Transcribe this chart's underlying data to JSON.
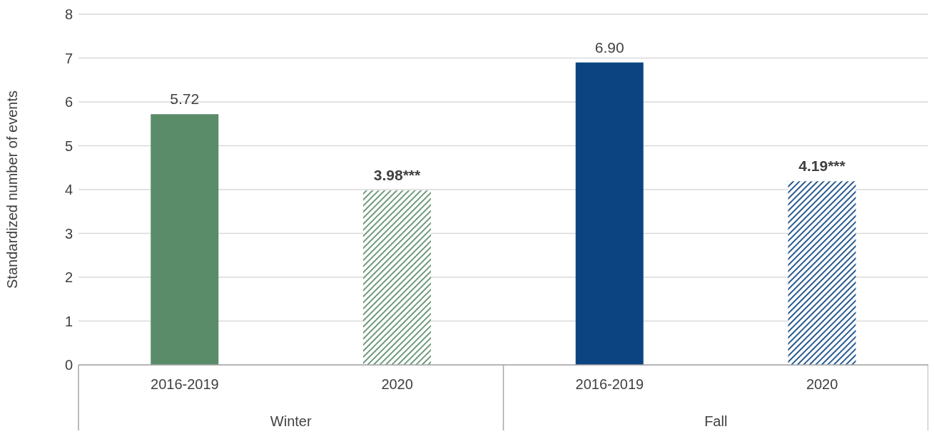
{
  "chart_data": {
    "type": "bar",
    "ylabel": "Standardized number of events",
    "categories": [
      "2016-2019",
      "2020",
      "2016-2019",
      "2020"
    ],
    "series": [
      {
        "colors": [
          "#5b8c6a",
          null,
          "#0b4480",
          null
        ],
        "values": [
          5.72,
          null,
          6.9,
          null
        ],
        "value_labels": [
          "5.72",
          null,
          "6.90",
          null
        ]
      },
      {
        "colors": [
          null,
          "#5b8c6a",
          null,
          "#0b4480"
        ],
        "values": [
          null,
          3.98,
          null,
          4.19
        ],
        "value_labels": [
          null,
          "3.98***",
          null,
          "4.19***"
        ]
      }
    ],
    "annotations": [
      "Winter",
      "Fall"
    ],
    "ylim": [
      0,
      8
    ],
    "yticks": [
      0,
      1,
      2,
      3,
      4,
      5,
      6,
      7,
      8
    ],
    "grid": "y"
  }
}
